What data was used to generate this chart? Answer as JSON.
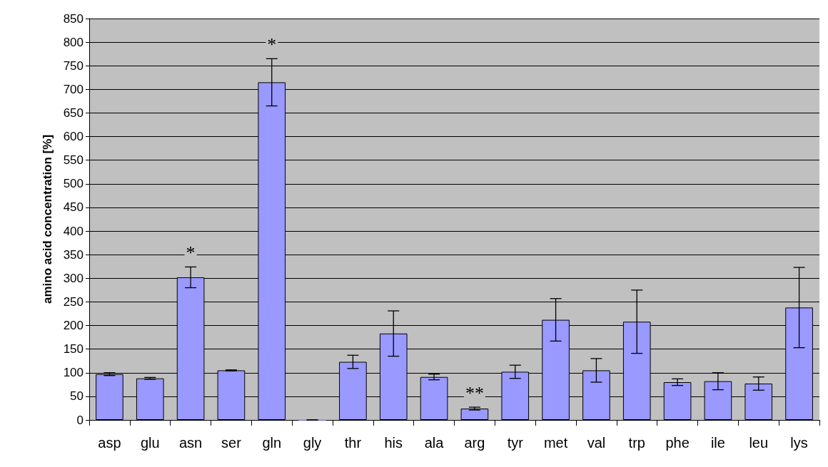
{
  "chart_data": {
    "type": "bar",
    "ylabel": "amino acid concentration [%]",
    "categories": [
      "asp",
      "glu",
      "asn",
      "ser",
      "gln",
      "gly",
      "thr",
      "his",
      "ala",
      "arg",
      "tyr",
      "met",
      "val",
      "trp",
      "phe",
      "ile",
      "leu",
      "lys"
    ],
    "values": [
      97,
      88,
      302,
      105,
      715,
      0,
      123,
      183,
      91,
      24,
      102,
      212,
      105,
      208,
      80,
      82,
      77,
      238
    ],
    "errors": [
      3,
      2,
      22,
      1,
      50,
      0,
      14,
      48,
      6,
      3,
      14,
      45,
      25,
      67,
      7,
      18,
      14,
      85
    ],
    "color": "#9999ff",
    "ylim": [
      0,
      850
    ],
    "yticks": [
      0,
      50,
      100,
      150,
      200,
      250,
      300,
      350,
      400,
      450,
      500,
      550,
      600,
      650,
      700,
      750,
      800,
      850
    ],
    "grid": "y",
    "annotations": [
      {
        "text": "*",
        "x": "asn",
        "y": 302
      },
      {
        "text": "*",
        "x": "gln",
        "y": 715
      },
      {
        "text": "**",
        "x": "arg",
        "y": 24
      }
    ]
  }
}
